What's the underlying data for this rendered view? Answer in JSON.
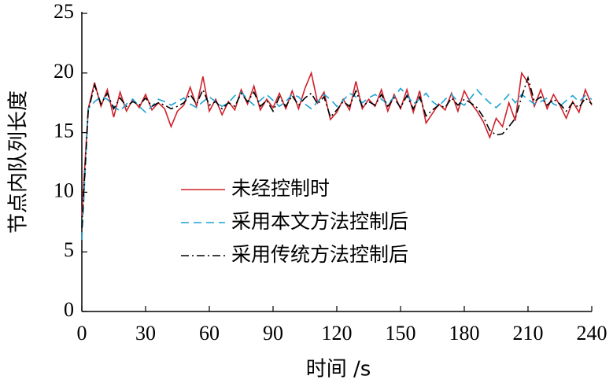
{
  "chart_data": {
    "type": "line",
    "x_label": "时间 /s",
    "y_label": "节点内队列长度",
    "x": [
      0,
      3,
      6,
      9,
      12,
      15,
      18,
      21,
      24,
      27,
      30,
      33,
      36,
      39,
      42,
      45,
      48,
      51,
      54,
      57,
      60,
      63,
      66,
      69,
      72,
      75,
      78,
      81,
      84,
      87,
      90,
      93,
      96,
      99,
      102,
      105,
      108,
      111,
      114,
      117,
      120,
      123,
      126,
      129,
      132,
      135,
      138,
      141,
      144,
      147,
      150,
      153,
      156,
      159,
      162,
      165,
      168,
      171,
      174,
      177,
      180,
      183,
      186,
      189,
      192,
      195,
      198,
      201,
      204,
      207,
      210,
      213,
      216,
      219,
      222,
      225,
      228,
      231,
      234,
      237,
      240
    ],
    "series": [
      {
        "name": "未经控制时",
        "color": "#d0202a",
        "dash": "none",
        "values": [
          8,
          17,
          19.2,
          17.2,
          18.6,
          16.3,
          18.4,
          16.8,
          17.8,
          17.1,
          18.2,
          16.9,
          17.5,
          17.0,
          15.5,
          16.8,
          17.3,
          18.8,
          17.2,
          19.7,
          16.8,
          17.8,
          16.5,
          17.6,
          16.9,
          18.6,
          17.4,
          18.9,
          16.9,
          17.8,
          17.1,
          18.3,
          17.0,
          18.5,
          17.0,
          18.7,
          20.0,
          17.5,
          18.4,
          16.1,
          16.7,
          17.8,
          16.9,
          19.3,
          17.0,
          17.8,
          17.2,
          18.6,
          16.8,
          18.2,
          17.0,
          18.6,
          16.7,
          18.5,
          15.8,
          16.6,
          17.4,
          16.9,
          18.3,
          16.8,
          18.5,
          17.5,
          16.8,
          15.9,
          14.6,
          16.2,
          15.5,
          17.5,
          16.0,
          20.0,
          19.2,
          17.2,
          18.6,
          17.0,
          18.2,
          17.3,
          16.2,
          17.6,
          16.7,
          18.6,
          17.3
        ]
      },
      {
        "name": "采用本文方法控制后",
        "color": "#1aa3d6",
        "dash": "10,6",
        "values": [
          6,
          17.0,
          17.6,
          18.0,
          17.8,
          17.2,
          16.8,
          17.4,
          17.8,
          17.2,
          16.7,
          17.2,
          17.8,
          17.6,
          17.3,
          17.6,
          17.9,
          17.4,
          17.1,
          17.6,
          18.0,
          17.6,
          17.2,
          17.5,
          18.1,
          18.4,
          17.8,
          17.3,
          17.7,
          18.2,
          17.7,
          17.2,
          17.6,
          18.2,
          18.0,
          17.4,
          17.0,
          17.6,
          18.2,
          17.8,
          17.2,
          17.7,
          18.3,
          18.0,
          17.5,
          17.9,
          18.2,
          17.8,
          17.4,
          18.0,
          18.7,
          18.2,
          17.4,
          17.8,
          18.3,
          17.6,
          17.2,
          17.8,
          18.2,
          17.6,
          17.3,
          17.9,
          18.6,
          18.0,
          17.5,
          17.1,
          17.6,
          18.2,
          17.5,
          18.2,
          17.8,
          17.4,
          17.6,
          17.9,
          17.4,
          17.2,
          17.7,
          18.1,
          17.6,
          18.1,
          17.8
        ]
      },
      {
        "name": "采用传统方法控制后",
        "color": "#000000",
        "dash": "10,4,2,4",
        "values": [
          7,
          16.8,
          19.0,
          17.4,
          18.3,
          17.0,
          17.9,
          17.2,
          17.6,
          17.3,
          17.9,
          17.2,
          17.5,
          17.3,
          17.0,
          17.2,
          17.5,
          18.2,
          17.4,
          18.6,
          17.3,
          17.6,
          17.0,
          17.5,
          17.2,
          18.3,
          17.6,
          18.4,
          17.2,
          17.7,
          16.8,
          18.0,
          17.2,
          18.1,
          17.3,
          17.9,
          18.3,
          17.4,
          18.0,
          16.3,
          16.9,
          17.6,
          17.2,
          18.5,
          17.2,
          17.6,
          17.3,
          18.2,
          17.2,
          17.9,
          17.1,
          18.1,
          17.0,
          18.0,
          16.4,
          16.9,
          17.3,
          17.1,
          17.9,
          17.3,
          17.8,
          17.5,
          17.1,
          16.3,
          15.2,
          14.8,
          14.9,
          15.5,
          16.2,
          18.0,
          19.6,
          17.6,
          18.0,
          17.3,
          17.8,
          17.4,
          16.8,
          17.5,
          17.1,
          17.9,
          17.4
        ]
      }
    ],
    "xlim": [
      0,
      240
    ],
    "xticks": [
      0,
      30,
      60,
      90,
      120,
      150,
      180,
      210,
      240
    ],
    "ylim": [
      0,
      25
    ],
    "yticks": [
      0,
      5,
      10,
      15,
      20,
      25
    ],
    "legend": "center-left"
  }
}
